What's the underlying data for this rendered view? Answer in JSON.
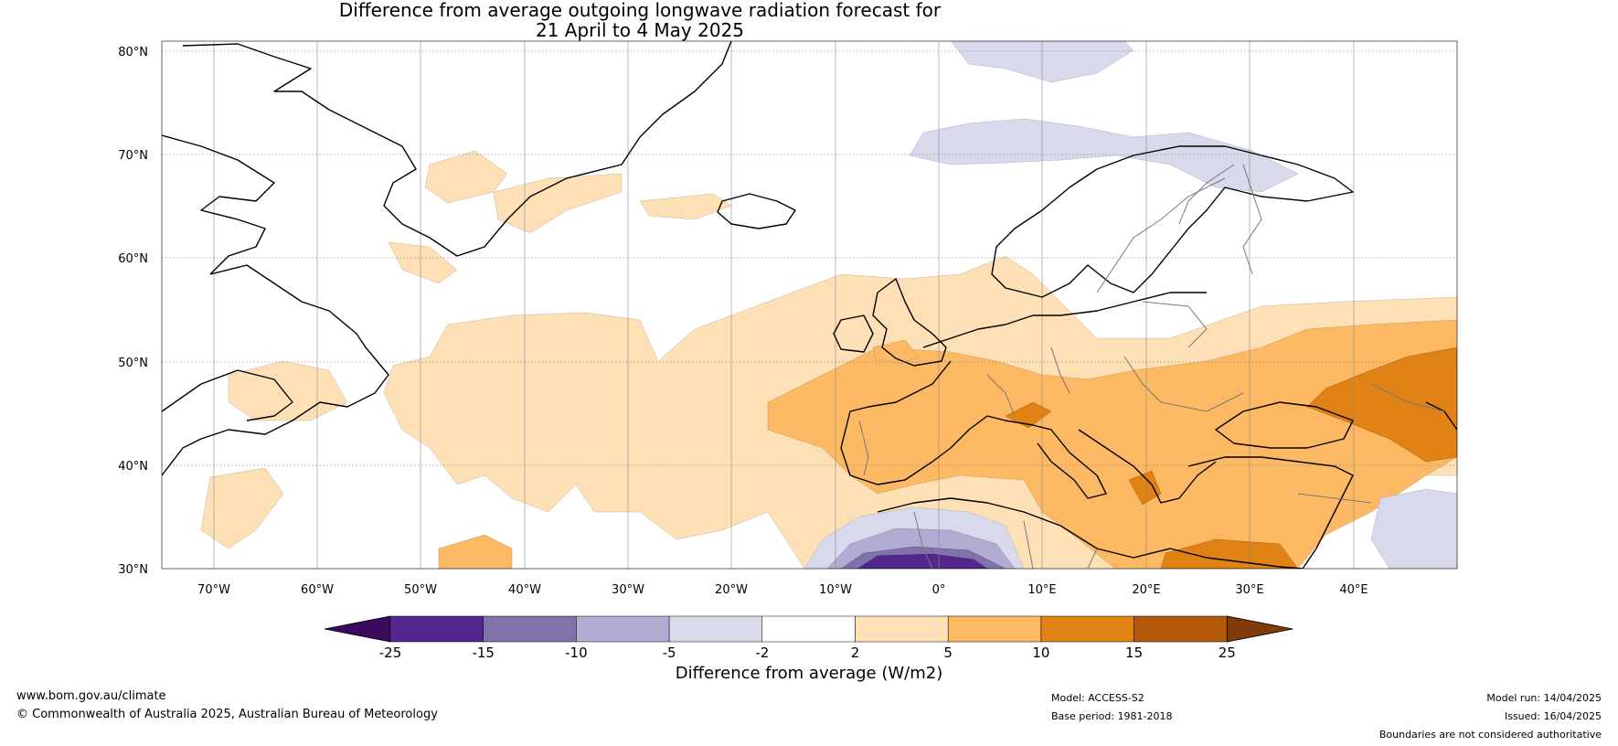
{
  "title": {
    "line1": "Difference from average outgoing longwave radiation forecast for",
    "line2": "21 April to 4 May 2025"
  },
  "map": {
    "lat_labels": [
      "80°N",
      "70°N",
      "60°N",
      "50°N",
      "40°N",
      "30°N"
    ],
    "lon_labels": [
      "70°W",
      "60°W",
      "50°W",
      "40°W",
      "30°W",
      "20°W",
      "10°W",
      "0°",
      "10°E",
      "20°E",
      "30°E",
      "40°E"
    ],
    "extent": {
      "lon": [
        -75,
        50
      ],
      "lat": [
        30,
        81
      ]
    },
    "ocean_color": "#ffffff"
  },
  "colorbar": {
    "label": "Difference from average (W/m2)",
    "ticks": [
      "-25",
      "-15",
      "-10",
      "-5",
      "-2",
      "2",
      "5",
      "10",
      "15",
      "25"
    ],
    "low_extend_color": "#3b0a5c",
    "high_extend_color": "#7f3b08",
    "colors": [
      "#54278f",
      "#8073ac",
      "#b2abd2",
      "#d8daeb",
      "#ffffff",
      "#fee0b6",
      "#fdb863",
      "#e08214",
      "#b35806"
    ]
  },
  "footer": {
    "website": "www.bom.gov.au/climate",
    "copyright": "© Commonwealth of Australia 2025, Australian Bureau of Meteorology",
    "model": "Model: ACCESS-S2",
    "base_period": "Base period: 1981-2018",
    "model_run": "Model run: 14/04/2025",
    "issued": "Issued: 16/04/2025",
    "disclaimer": "Boundaries are not considered authoritative"
  }
}
